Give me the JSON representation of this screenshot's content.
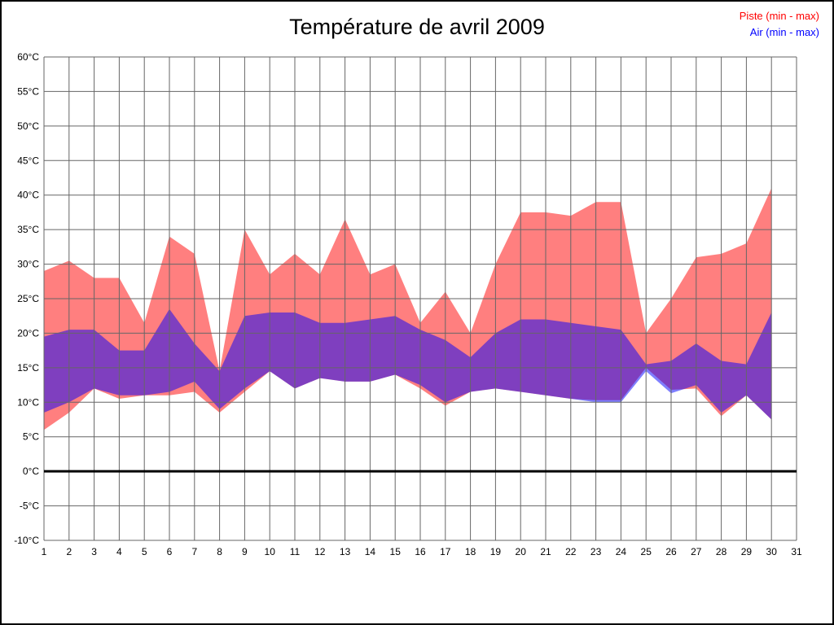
{
  "title": "Température de avril 2009",
  "legend": {
    "piste": "Piste (min - max)",
    "air": "Air (min - max)"
  },
  "colors": {
    "piste_band": "#FF7F7F",
    "air_band": "rgba(0,0,255,0.5)",
    "piste_text": "#FF0000",
    "air_text": "#0000FF",
    "grid": "#666666",
    "zero_line": "#000000",
    "tick_text": "#000000"
  },
  "chart_data": {
    "type": "area",
    "title": "Température de avril 2009",
    "xlabel": "",
    "ylabel": "",
    "ylim": [
      -10,
      60
    ],
    "grid": true,
    "legend_position": "top-right",
    "x_label_days": [
      "1",
      "2",
      "3",
      "4",
      "5",
      "6",
      "7",
      "8",
      "9",
      "10",
      "11",
      "12",
      "13",
      "14",
      "15",
      "16",
      "17",
      "18",
      "19",
      "20",
      "21",
      "22",
      "23",
      "24",
      "25",
      "26",
      "27",
      "28",
      "29",
      "30",
      "31"
    ],
    "ytick_values": [
      60,
      55,
      50,
      45,
      40,
      35,
      30,
      25,
      20,
      15,
      10,
      5,
      0,
      -5,
      -10
    ],
    "ytick_labels": [
      "60°C",
      "55°C",
      "50°C",
      "45°C",
      "40°C",
      "35°C",
      "30°C",
      "25°C",
      "20°C",
      "15°C",
      "10°C",
      "5°C",
      "0°C",
      "-5°C",
      "-10°C"
    ],
    "days": [
      1,
      2,
      3,
      4,
      5,
      6,
      7,
      8,
      9,
      10,
      11,
      12,
      13,
      14,
      15,
      16,
      17,
      18,
      19,
      20,
      21,
      22,
      23,
      24,
      25,
      26,
      27,
      28,
      29,
      30
    ],
    "series": [
      {
        "name": "Piste (min - max)",
        "max": [
          29,
          30.5,
          28,
          28,
          21.5,
          34,
          31.5,
          14.5,
          35,
          28.5,
          31.5,
          28.5,
          36.5,
          28.5,
          30,
          21.5,
          26,
          20,
          30,
          37.5,
          37.5,
          37,
          39,
          39,
          20,
          25,
          31,
          31.5,
          33,
          41
        ],
        "min": [
          6,
          8.5,
          12,
          10.5,
          11,
          11,
          11.5,
          8.5,
          11.5,
          14.5,
          12,
          13.5,
          13,
          13,
          14,
          12,
          9.5,
          11.5,
          12,
          11.5,
          11,
          10.5,
          10.3,
          10.3,
          15,
          11.8,
          12,
          8,
          11,
          7.5
        ],
        "color": "#FF7F7F"
      },
      {
        "name": "Air (min - max)",
        "max": [
          19.5,
          20.5,
          20.5,
          17.5,
          17.5,
          23.5,
          18.5,
          14.5,
          22.5,
          23,
          23,
          21.5,
          21.5,
          22,
          22.5,
          20.5,
          19,
          16.5,
          20,
          22,
          22,
          21.5,
          21,
          20.5,
          15.5,
          16,
          18.5,
          16,
          15.5,
          23
        ],
        "min": [
          8.5,
          10,
          12,
          11,
          11,
          11.5,
          13,
          9,
          12,
          14.5,
          12,
          13.5,
          13,
          13,
          14,
          12.5,
          10,
          11.5,
          12,
          11.5,
          11,
          10.5,
          10,
          10,
          14.5,
          11.3,
          12.5,
          8.5,
          11,
          7.5
        ],
        "color": "#0000FF"
      }
    ]
  }
}
